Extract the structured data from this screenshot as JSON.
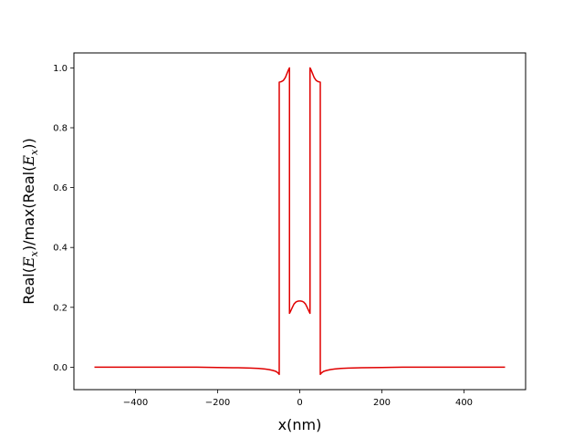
{
  "chart_data": {
    "type": "line",
    "title": "",
    "xlabel": "x(nm)",
    "ylabel_parts": {
      "a": "Real(",
      "b": "E",
      "c": "x",
      "d": ")/max(Real(",
      "e": "E",
      "f": "x",
      "g": "))"
    },
    "xlim": [
      -550,
      550
    ],
    "ylim": [
      -0.075,
      1.05
    ],
    "xticks": [
      -400,
      -200,
      0,
      200,
      400
    ],
    "xtick_labels": [
      "−400",
      "−200",
      "0",
      "200",
      "400"
    ],
    "yticks": [
      0.0,
      0.2,
      0.4,
      0.6,
      0.8,
      1.0
    ],
    "ytick_labels": [
      "0.0",
      "0.2",
      "0.4",
      "0.6",
      "0.8",
      "1.0"
    ],
    "grid": false,
    "legend": "none",
    "series": [
      {
        "color": "#e00000",
        "x": [
          -500,
          -450,
          -400,
          -350,
          -300,
          -250,
          -200,
          -150,
          -120,
          -100,
          -85,
          -75,
          -65,
          -58,
          -53,
          -50,
          -50,
          -48,
          -45,
          -40,
          -35,
          -30,
          -27,
          -25,
          -25,
          -22,
          -18,
          -14,
          -10,
          -6,
          -2,
          0,
          2,
          6,
          10,
          14,
          18,
          22,
          25,
          25,
          27,
          30,
          35,
          40,
          45,
          48,
          50,
          50,
          53,
          58,
          65,
          75,
          85,
          100,
          120,
          150,
          200,
          250,
          300,
          350,
          400,
          450,
          500
        ],
        "y": [
          0.0,
          0.0,
          0.0,
          0.0,
          0.0,
          0.0,
          -0.001,
          -0.002,
          -0.003,
          -0.004,
          -0.006,
          -0.008,
          -0.011,
          -0.014,
          -0.019,
          -0.024,
          0.952,
          0.953,
          0.954,
          0.958,
          0.968,
          0.985,
          0.995,
          1.0,
          0.18,
          0.188,
          0.2,
          0.211,
          0.217,
          0.22,
          0.221,
          0.221,
          0.221,
          0.22,
          0.217,
          0.211,
          0.2,
          0.188,
          0.18,
          1.0,
          0.995,
          0.985,
          0.968,
          0.958,
          0.954,
          0.953,
          0.952,
          -0.024,
          -0.019,
          -0.014,
          -0.011,
          -0.008,
          -0.006,
          -0.004,
          -0.003,
          -0.002,
          -0.001,
          0.0,
          0.0,
          0.0,
          0.0,
          0.0,
          0.0
        ]
      }
    ]
  }
}
